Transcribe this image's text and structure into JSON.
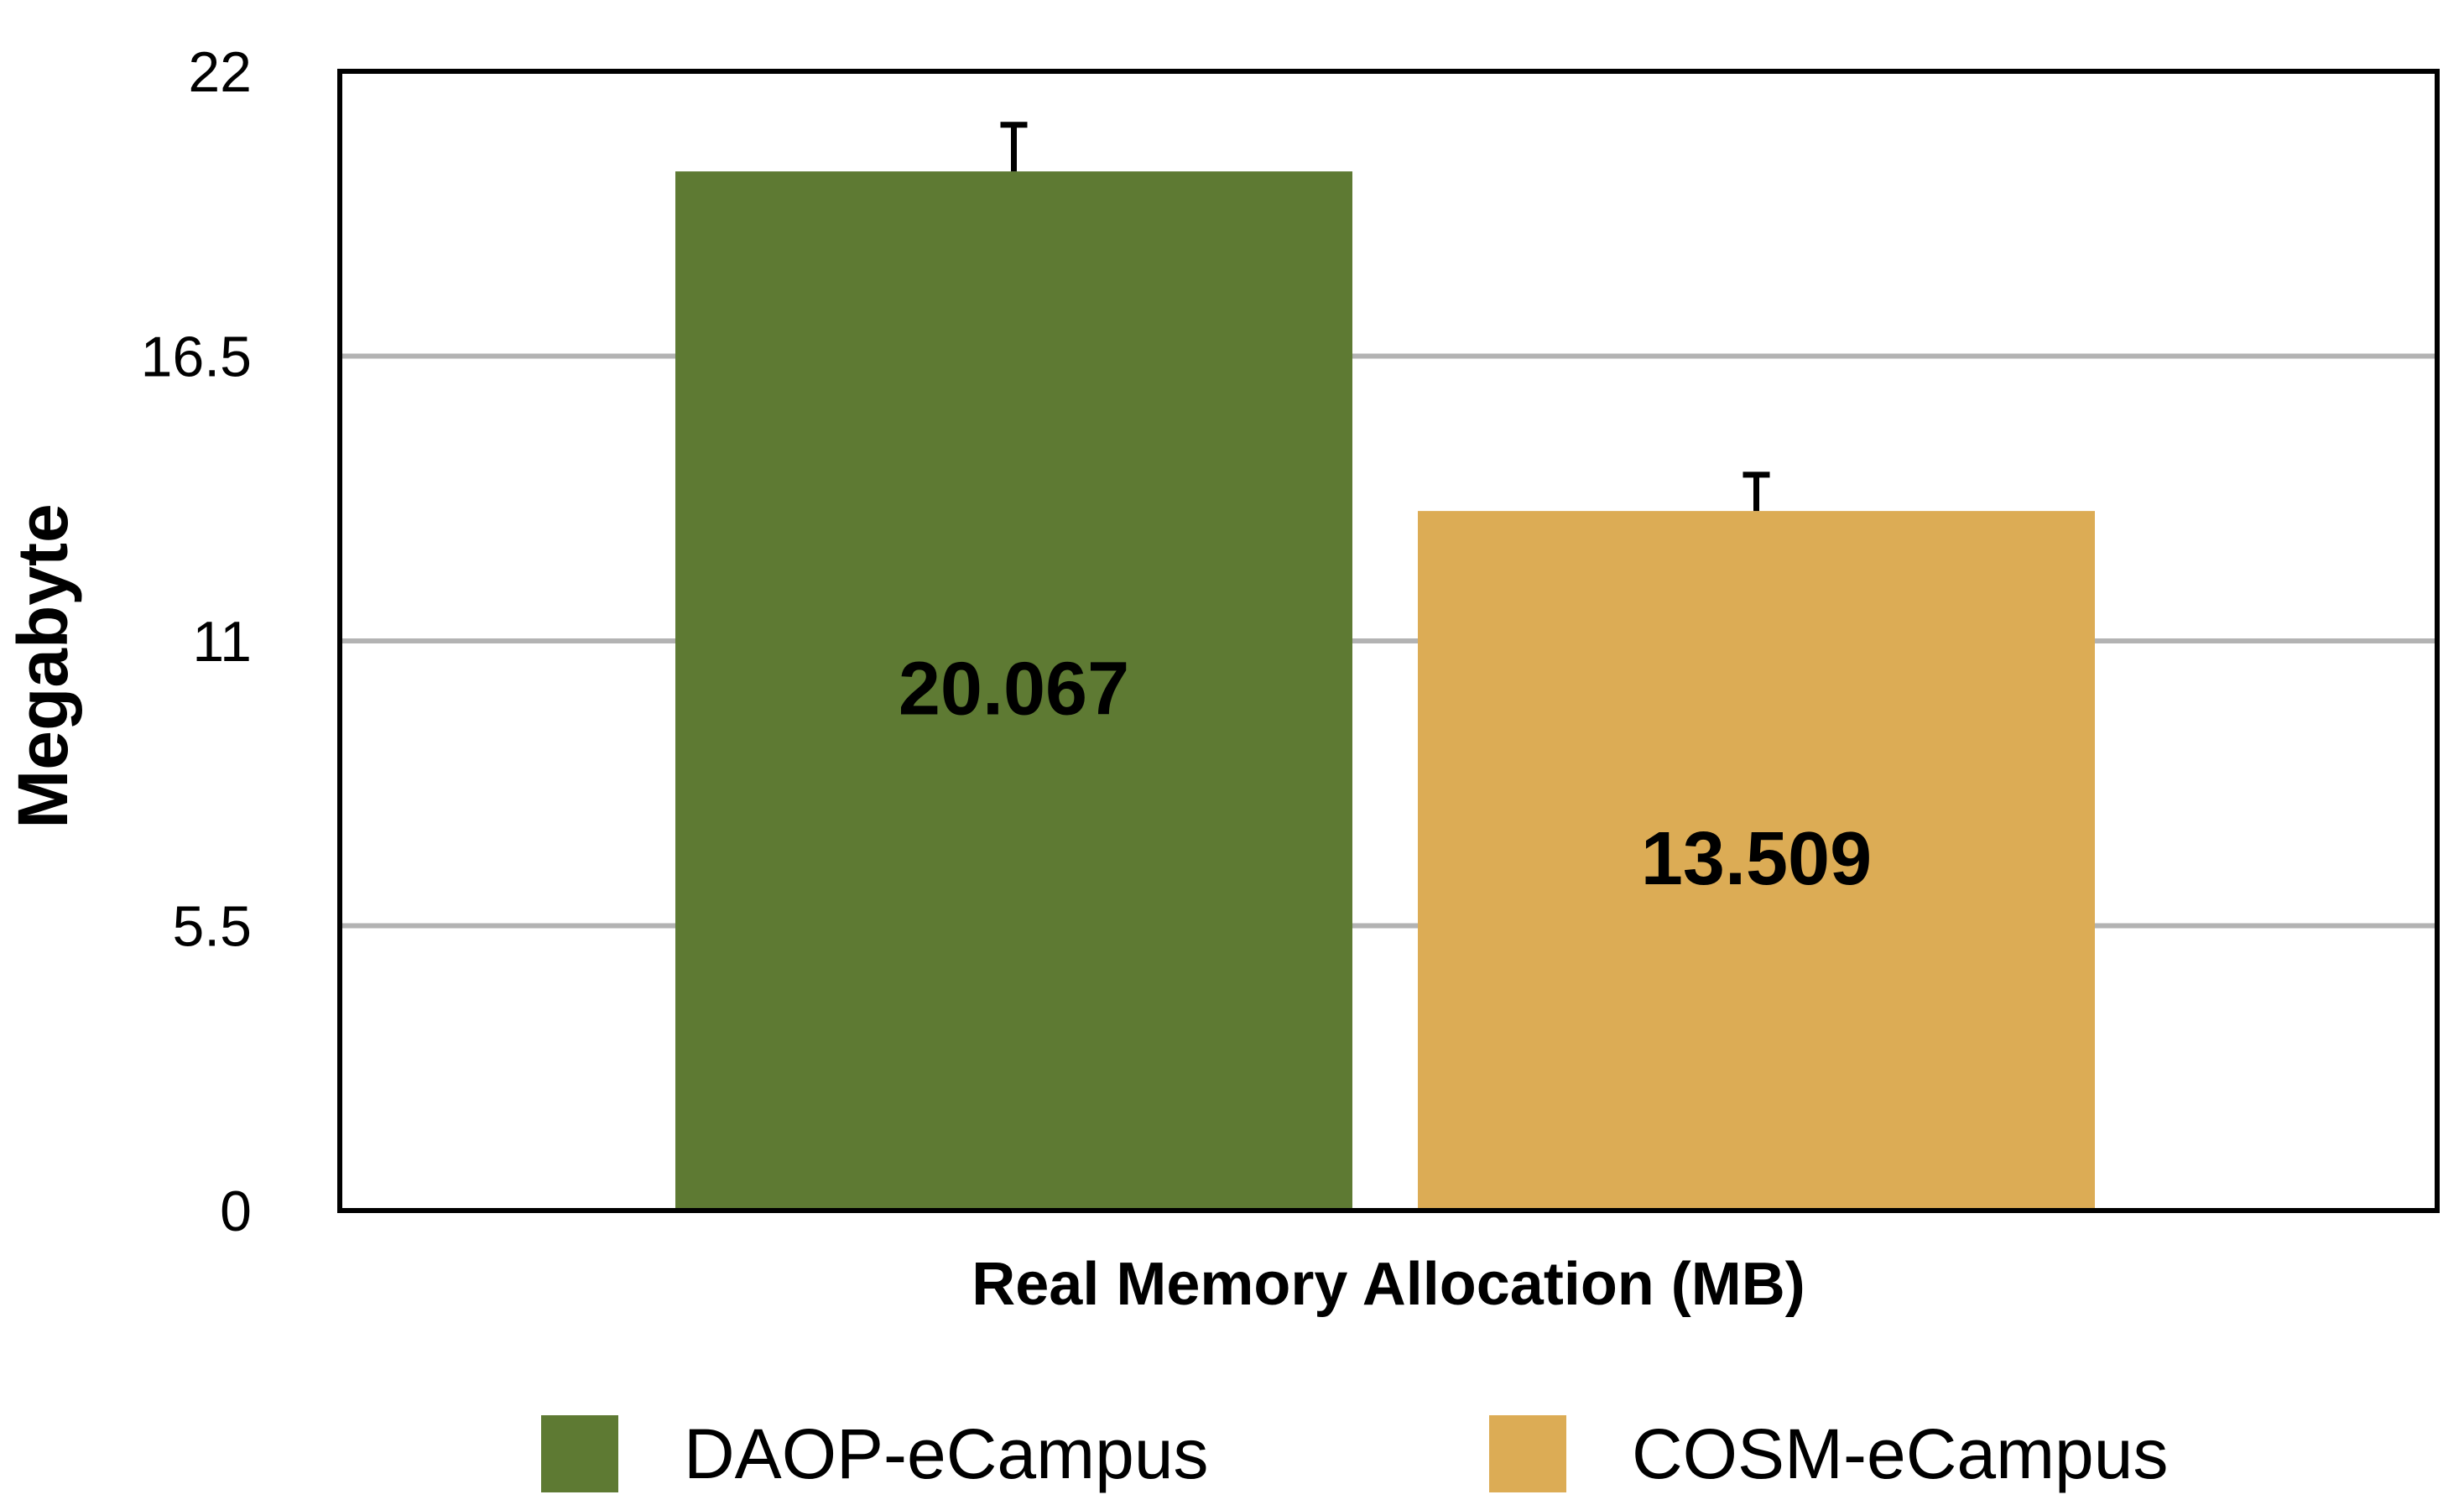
{
  "chart_data": {
    "type": "bar",
    "title": "",
    "xlabel": "Real Memory Allocation (MB)",
    "ylabel": "Megabyte",
    "ylim": [
      0,
      22
    ],
    "yticks": [
      "0",
      "5.5",
      "11",
      "16.5",
      "22"
    ],
    "ytick_values": [
      0,
      5.5,
      11,
      16.5,
      22
    ],
    "grid": true,
    "legend_position": "bottom",
    "series": [
      {
        "name": "DAOP-eCampus",
        "value": 20.067,
        "label": "20.067",
        "error": 0.9,
        "color": "#5e7a33"
      },
      {
        "name": "COSM-eCampus",
        "value": 13.509,
        "label": "13.509",
        "error": 0.7,
        "color": "#dcac55"
      }
    ]
  }
}
